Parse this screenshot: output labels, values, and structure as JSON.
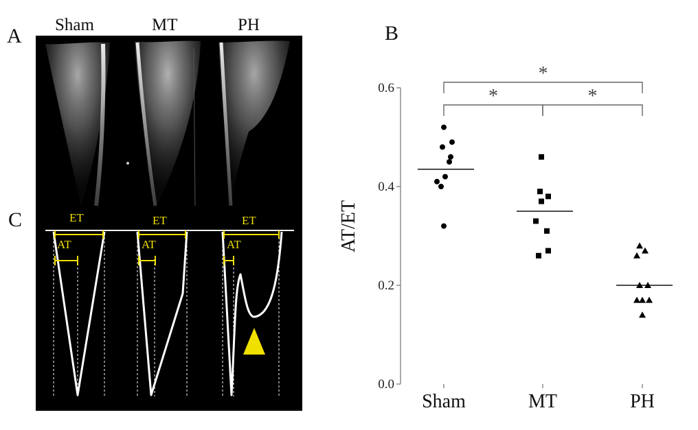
{
  "panels": {
    "a": {
      "letter": "A",
      "columns": [
        "Sham",
        "MT",
        "PH"
      ]
    },
    "b": {
      "letter": "B"
    },
    "c": {
      "letter": "C",
      "et_label": "ET",
      "at_label": "AT"
    }
  },
  "colors": {
    "marker_yellow": "#f0e000",
    "trace_white": "#ffffff",
    "panel_bg": "#000000",
    "marker": "#000000"
  },
  "chart_data": {
    "type": "scatter",
    "ylabel": "AT/ET",
    "xlabel": "",
    "categories": [
      "Sham",
      "MT",
      "PH"
    ],
    "ylim": [
      0,
      0.6
    ],
    "yticks": [
      "0.0",
      "0.2",
      "0.4",
      "0.6"
    ],
    "grid": false,
    "series": [
      {
        "category": "Sham",
        "marker": "circle",
        "mean": 0.435,
        "values": [
          0.52,
          0.49,
          0.48,
          0.46,
          0.45,
          0.42,
          0.41,
          0.4,
          0.32
        ]
      },
      {
        "category": "MT",
        "marker": "square",
        "mean": 0.35,
        "values": [
          0.46,
          0.39,
          0.38,
          0.37,
          0.33,
          0.31,
          0.27,
          0.26
        ]
      },
      {
        "category": "PH",
        "marker": "triangle",
        "mean": 0.2,
        "values": [
          0.28,
          0.27,
          0.26,
          0.2,
          0.2,
          0.17,
          0.17,
          0.17,
          0.14
        ]
      }
    ],
    "significance": [
      {
        "groups": [
          "Sham",
          "PH"
        ],
        "symbol": "*"
      },
      {
        "groups": [
          "Sham",
          "MT"
        ],
        "symbol": "*"
      },
      {
        "groups": [
          "MT",
          "PH"
        ],
        "symbol": "*"
      }
    ]
  }
}
